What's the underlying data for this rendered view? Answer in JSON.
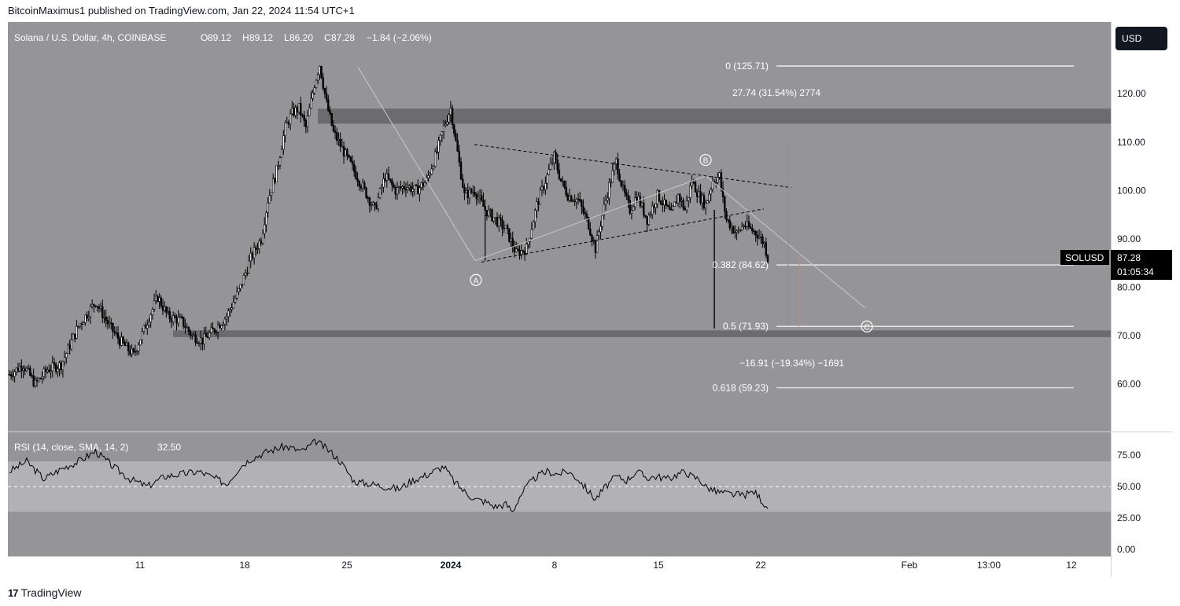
{
  "header": {
    "published": "BitcoinMaximus1 published on TradingView.com, Jan 22, 2024 11:54 UTC+1"
  },
  "footer": {
    "brand": "TradingView",
    "logo_glyph": "17"
  },
  "colors": {
    "main_bg": "#959598",
    "panel_bg": "#ffffff",
    "candle": "#000000",
    "resistance_zone": "#6b6b70",
    "rsi_band": "#b2b2b6",
    "fib_line": "#ffffff",
    "label_bg": "#000000"
  },
  "chart_data": {
    "type": "candlestick",
    "symbol_info": {
      "title": "Solana / U.S. Dollar, 4h, COINBASE",
      "O": "89.12",
      "H": "89.12",
      "L": "86.20",
      "C": "87.28",
      "change": "−1.84 (−2.06%)"
    },
    "currency": "USD",
    "ylim": [
      50.5,
      131
    ],
    "y_ticks": [
      "60.00",
      "70.00",
      "80.00",
      "90.00",
      "100.00",
      "110.00",
      "120.00"
    ],
    "x_labels": [
      "11",
      "18",
      "25",
      "2024",
      "8",
      "15",
      "22",
      "Feb",
      "13:00",
      "12"
    ],
    "price_label": {
      "symbol": "SOLUSD",
      "price": "87.28",
      "countdown": "01:05:34"
    },
    "path": [
      [
        0,
        62
      ],
      [
        8,
        64
      ],
      [
        15,
        60
      ],
      [
        22,
        63
      ],
      [
        30,
        64
      ],
      [
        40,
        72
      ],
      [
        50,
        77
      ],
      [
        58,
        72
      ],
      [
        64,
        69
      ],
      [
        72,
        66
      ],
      [
        80,
        73
      ],
      [
        86,
        78
      ],
      [
        92,
        74
      ],
      [
        100,
        73
      ],
      [
        106,
        70
      ],
      [
        112,
        69
      ],
      [
        118,
        71
      ],
      [
        126,
        74
      ],
      [
        134,
        80
      ],
      [
        140,
        86
      ],
      [
        146,
        90
      ],
      [
        150,
        98
      ],
      [
        155,
        104
      ],
      [
        160,
        113
      ],
      [
        164,
        116
      ],
      [
        168,
        117
      ],
      [
        172,
        113
      ],
      [
        177,
        122
      ],
      [
        180,
        126
      ],
      [
        184,
        118
      ],
      [
        188,
        112
      ],
      [
        194,
        108
      ],
      [
        200,
        104
      ],
      [
        206,
        100
      ],
      [
        212,
        96
      ],
      [
        218,
        103
      ],
      [
        224,
        100
      ],
      [
        230,
        101
      ],
      [
        236,
        100
      ],
      [
        242,
        102
      ],
      [
        248,
        108
      ],
      [
        252,
        113
      ],
      [
        256,
        117
      ],
      [
        259,
        110
      ],
      [
        264,
        99
      ],
      [
        270,
        100
      ],
      [
        276,
        96
      ],
      [
        282,
        94
      ],
      [
        288,
        92
      ],
      [
        294,
        87
      ],
      [
        300,
        88
      ],
      [
        306,
        97
      ],
      [
        312,
        103
      ],
      [
        316,
        107
      ],
      [
        320,
        102
      ],
      [
        324,
        99
      ],
      [
        330,
        98
      ],
      [
        336,
        93
      ],
      [
        340,
        88
      ],
      [
        344,
        95
      ],
      [
        348,
        101
      ],
      [
        352,
        106
      ],
      [
        356,
        100
      ],
      [
        360,
        96
      ],
      [
        364,
        99
      ],
      [
        370,
        94
      ],
      [
        376,
        99
      ],
      [
        380,
        97
      ],
      [
        384,
        95
      ],
      [
        388,
        99
      ],
      [
        392,
        96
      ],
      [
        396,
        102
      ],
      [
        400,
        99
      ],
      [
        404,
        97
      ],
      [
        408,
        102
      ],
      [
        412,
        103
      ],
      [
        414,
        98
      ],
      [
        416,
        94
      ],
      [
        418,
        93
      ],
      [
        422,
        91
      ],
      [
        426,
        93
      ],
      [
        430,
        92
      ],
      [
        434,
        91
      ],
      [
        438,
        89
      ],
      [
        440,
        86
      ]
    ],
    "resistance_zone": [
      113.8,
      116.9
    ],
    "support_zone": [
      69.7,
      71.1
    ],
    "fib_levels": [
      {
        "ratio_label": "0 (125.71)",
        "value": 125.71
      },
      {
        "ratio_label": "0.382 (84.62)",
        "value": 84.62
      },
      {
        "ratio_label": "0.5 (71.93)",
        "value": 71.93
      },
      {
        "ratio_label": "0.618 (59.23)",
        "value": 59.23
      }
    ],
    "measure_up": "27.74 (31.54%) 2774",
    "measure_down": "−16.91 (−19.34%) −1691",
    "wave_labels": [
      "A",
      "B",
      "C"
    ],
    "rsi": {
      "title": "RSI (14, close, SMA, 14, 2)",
      "value": "32.50",
      "ticks": [
        "75.00",
        "50.00",
        "25.00",
        "0.00"
      ],
      "ylim": [
        -10,
        100
      ],
      "band": [
        30,
        70
      ],
      "path": [
        [
          0,
          62
        ],
        [
          10,
          70
        ],
        [
          20,
          56
        ],
        [
          30,
          64
        ],
        [
          40,
          70
        ],
        [
          50,
          78
        ],
        [
          60,
          66
        ],
        [
          70,
          56
        ],
        [
          80,
          50
        ],
        [
          90,
          58
        ],
        [
          100,
          60
        ],
        [
          110,
          62
        ],
        [
          120,
          56
        ],
        [
          126,
          52
        ],
        [
          134,
          66
        ],
        [
          140,
          72
        ],
        [
          150,
          78
        ],
        [
          160,
          82
        ],
        [
          170,
          78
        ],
        [
          178,
          86
        ],
        [
          186,
          78
        ],
        [
          192,
          70
        ],
        [
          200,
          54
        ],
        [
          210,
          52
        ],
        [
          218,
          50
        ],
        [
          226,
          48
        ],
        [
          234,
          55
        ],
        [
          240,
          58
        ],
        [
          246,
          62
        ],
        [
          252,
          66
        ],
        [
          258,
          54
        ],
        [
          264,
          46
        ],
        [
          270,
          40
        ],
        [
          276,
          38
        ],
        [
          282,
          34
        ],
        [
          288,
          36
        ],
        [
          292,
          30
        ],
        [
          296,
          42
        ],
        [
          300,
          50
        ],
        [
          306,
          58
        ],
        [
          312,
          62
        ],
        [
          318,
          60
        ],
        [
          324,
          62
        ],
        [
          330,
          56
        ],
        [
          336,
          46
        ],
        [
          340,
          40
        ],
        [
          346,
          50
        ],
        [
          352,
          58
        ],
        [
          358,
          55
        ],
        [
          364,
          62
        ],
        [
          370,
          57
        ],
        [
          376,
          58
        ],
        [
          382,
          56
        ],
        [
          388,
          60
        ],
        [
          392,
          62
        ],
        [
          396,
          58
        ],
        [
          400,
          56
        ],
        [
          404,
          50
        ],
        [
          410,
          46
        ],
        [
          418,
          44
        ],
        [
          426,
          43
        ],
        [
          432,
          46
        ],
        [
          436,
          40
        ],
        [
          440,
          32.5
        ]
      ]
    }
  }
}
